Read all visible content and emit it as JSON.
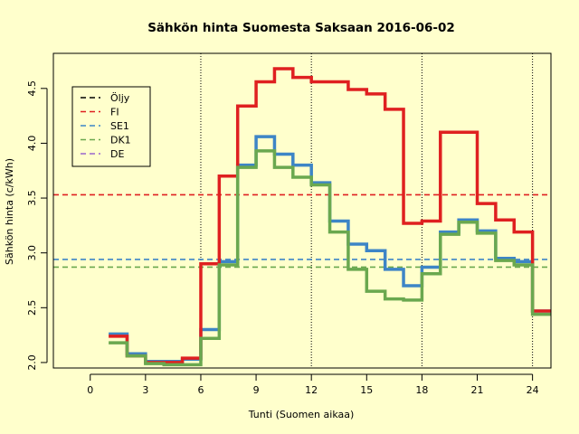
{
  "chart_data": {
    "type": "line",
    "step": true,
    "title": "Sähkön hinta Suomesta Saksaan 2016-06-02",
    "xlabel": "Tunti (Suomen aikaa)",
    "ylabel": "Sähkön hinta (c/kWh)",
    "xlim": [
      -2,
      25
    ],
    "ylim": [
      1.95,
      4.82
    ],
    "xticks": [
      0,
      3,
      6,
      9,
      12,
      15,
      18,
      21,
      24
    ],
    "yticks": [
      2.0,
      2.5,
      3.0,
      3.5,
      4.0,
      4.5
    ],
    "ytick_labels": [
      "2.0",
      "2.5",
      "3.0",
      "3.5",
      "4.0",
      "4.5"
    ],
    "vlines": [
      6,
      12,
      18,
      24
    ],
    "x": [
      1,
      2,
      3,
      4,
      5,
      6,
      7,
      8,
      9,
      10,
      11,
      12,
      13,
      14,
      15,
      16,
      17,
      18,
      19,
      20,
      21,
      22,
      23,
      24
    ],
    "legend_position": "top-left",
    "legend": [
      {
        "label": "Öljy",
        "color": "#000000"
      },
      {
        "label": "FI",
        "color": "#DF2020"
      },
      {
        "label": "SE1",
        "color": "#3D85C6"
      },
      {
        "label": "DK1",
        "color": "#6AA84F"
      },
      {
        "label": "DE",
        "color": "#9966CC"
      }
    ],
    "series": [
      {
        "name": "SE1",
        "color": "#3D85C6",
        "values": [
          2.26,
          2.08,
          2.01,
          2.01,
          2.03,
          2.3,
          2.92,
          3.8,
          4.06,
          3.9,
          3.8,
          3.64,
          3.29,
          3.08,
          3.02,
          2.85,
          2.7,
          2.87,
          3.19,
          3.3,
          3.2,
          2.95,
          2.92,
          2.47
        ],
        "mean": 2.94
      },
      {
        "name": "FI",
        "color": "#DF2020",
        "values": [
          2.24,
          2.06,
          2.0,
          2.0,
          2.04,
          2.9,
          3.7,
          4.34,
          4.56,
          4.68,
          4.6,
          4.56,
          4.56,
          4.49,
          4.45,
          4.31,
          3.27,
          3.29,
          4.1,
          4.1,
          3.45,
          3.3,
          3.19,
          2.47
        ],
        "mean": 3.53
      },
      {
        "name": "DK1",
        "color": "#6AA84F",
        "values": [
          2.18,
          2.06,
          1.99,
          1.98,
          1.98,
          2.22,
          2.89,
          3.78,
          3.93,
          3.78,
          3.69,
          3.62,
          3.19,
          2.85,
          2.65,
          2.58,
          2.57,
          2.81,
          3.17,
          3.28,
          3.18,
          2.93,
          2.89,
          2.44
        ],
        "mean": 2.87
      }
    ]
  }
}
